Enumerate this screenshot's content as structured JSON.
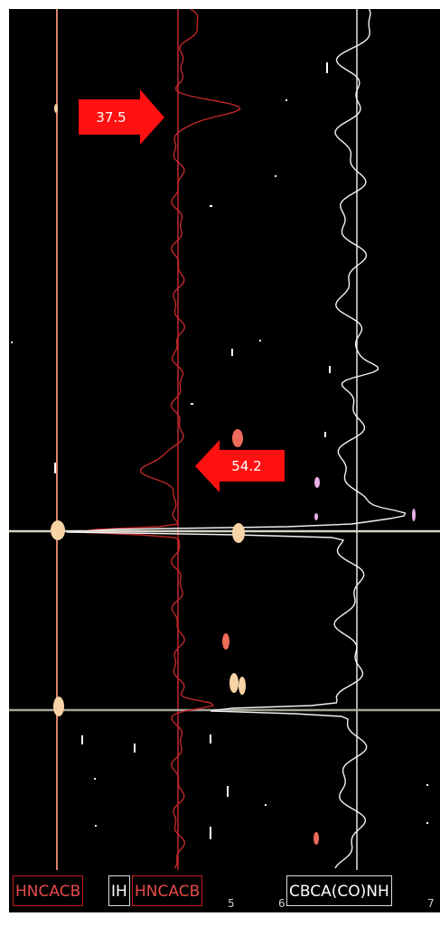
{
  "peak_markers": [
    {
      "value": "37.5",
      "direction": "right"
    },
    {
      "value": "54.2",
      "direction": "left"
    }
  ],
  "strip_labels": [
    {
      "text": "HNCACB",
      "style": "red"
    },
    {
      "text": "IH",
      "style": "white"
    },
    {
      "text": "HNCACB",
      "style": "red"
    },
    {
      "text": "CBCA(CO)NH",
      "style": "white"
    }
  ],
  "axis_ticks": [
    "5",
    "6",
    "7"
  ],
  "colors": {
    "background": "#000000",
    "hncacb_trace": "#c0282a",
    "cbcaconh_trace": "#ffffff",
    "vertical_line": "#d9826a",
    "horizontal_line": "#d8d2c4",
    "marker_arrow": "#ff0000",
    "peak_cream": "#f7d3a6",
    "peak_red": "#ef6b5b"
  },
  "icons": [
    "arrow-right-icon",
    "arrow-left-icon"
  ]
}
